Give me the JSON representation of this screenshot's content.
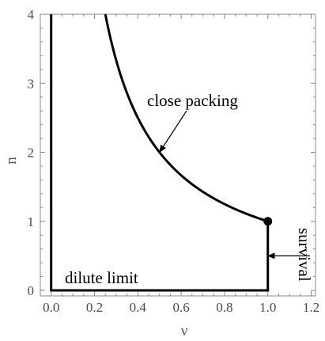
{
  "chart_data": {
    "type": "line",
    "title": "",
    "xlabel": "ν",
    "ylabel": "n",
    "xlim": [
      -0.05,
      1.22
    ],
    "ylim": [
      -0.08,
      4.0
    ],
    "xticks": [
      "0.0",
      "0.2",
      "0.4",
      "0.6",
      "0.8",
      "1.0",
      "1.2"
    ],
    "yticks": [
      "0",
      "1",
      "2",
      "3",
      "4"
    ],
    "grid": false,
    "series": [
      {
        "style": "boundary",
        "points": [
          [
            0.0,
            4.0
          ],
          [
            0.0,
            0.0
          ],
          [
            1.0,
            0.0
          ],
          [
            1.0,
            1.0
          ]
        ]
      },
      {
        "style": "curve",
        "function": "n = 1/ν",
        "x_range": [
          0.25,
          1.0
        ]
      }
    ],
    "marker": {
      "x": 1.0,
      "y": 1.0
    },
    "annotations": [
      {
        "text": "close packing",
        "arrow_to": [
          0.5,
          2.0
        ]
      },
      {
        "text": "dilute limit"
      },
      {
        "text": "survival",
        "arrow_to": [
          1.0,
          0.5
        ]
      }
    ],
    "colors": {
      "line": "#000000",
      "frame": "#888888",
      "tick_text": "#4a4a4a"
    }
  }
}
